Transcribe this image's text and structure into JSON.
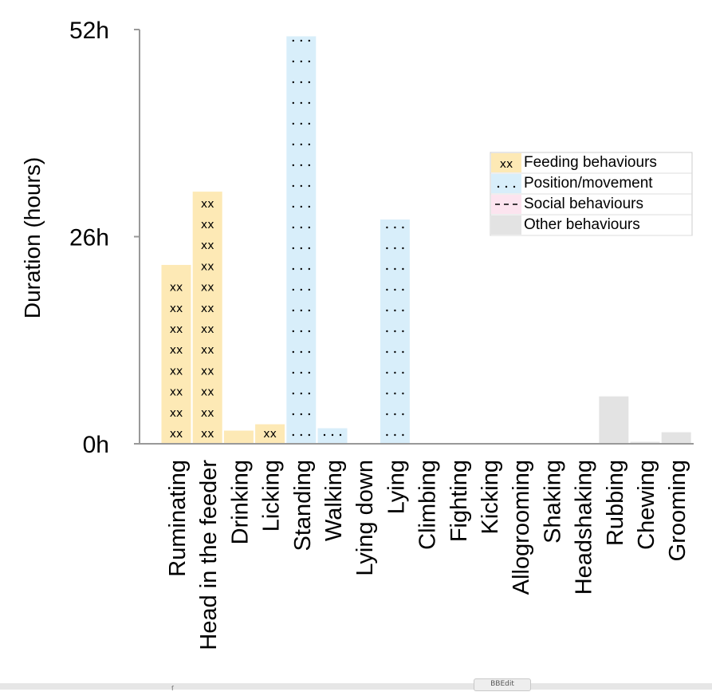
{
  "chart_data": {
    "type": "bar",
    "ylabel": "Duration (hours)",
    "ylim": [
      0,
      52
    ],
    "yticks": [
      "0h",
      "26h",
      "52h"
    ],
    "ytick_values": [
      0,
      26,
      52
    ],
    "categories": [
      "Ruminating",
      "Head in the feeder",
      "Drinking",
      "Licking",
      "Standing",
      "Walking",
      "Lying down",
      "Lying",
      "Climbing",
      "Fighting",
      "Kicking",
      "Allogrooming",
      "Shaking",
      "Headshaking",
      "Rubbing",
      "Chewing",
      "Grooming"
    ],
    "values": [
      22.5,
      31.7,
      1.7,
      2.5,
      51.2,
      2.0,
      0,
      28.2,
      0,
      0,
      0,
      0,
      0,
      0,
      6.0,
      0.3,
      1.5
    ],
    "groups": [
      "feeding",
      "feeding",
      "feeding",
      "feeding",
      "position",
      "position",
      "position",
      "position",
      "position",
      "social",
      "social",
      "social",
      "other",
      "other",
      "other",
      "other",
      "other"
    ],
    "legend": {
      "position": "top-right",
      "entries": [
        {
          "key": "feeding",
          "label": "Feeding behaviours",
          "color": "#fde9b5",
          "pattern": "xx"
        },
        {
          "key": "position",
          "label": "Position/movement",
          "color": "#d8eefa",
          "pattern": "dots"
        },
        {
          "key": "social",
          "label": "Social behaviours",
          "color": "#fce4ef",
          "pattern": "dashes"
        },
        {
          "key": "other",
          "label": "Other behaviours",
          "color": "#e3e3e3",
          "pattern": "none"
        }
      ]
    },
    "grid": false
  },
  "footer": {
    "tag_label": "BBEdit"
  }
}
